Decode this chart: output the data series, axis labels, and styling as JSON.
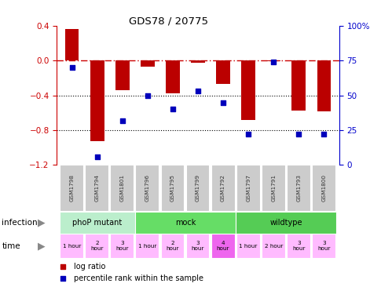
{
  "title": "GDS78 / 20775",
  "samples": [
    "GSM1798",
    "GSM1794",
    "GSM1801",
    "GSM1796",
    "GSM1795",
    "GSM1799",
    "GSM1792",
    "GSM1797",
    "GSM1791",
    "GSM1793",
    "GSM1800"
  ],
  "log_ratio": [
    0.36,
    -0.93,
    -0.34,
    -0.07,
    -0.38,
    -0.02,
    -0.27,
    -0.68,
    -0.01,
    -0.57,
    -0.58
  ],
  "percentile": [
    70,
    6,
    32,
    50,
    40,
    53,
    45,
    22,
    74,
    22,
    22
  ],
  "ylim_left": [
    -1.2,
    0.4
  ],
  "ylim_right": [
    0,
    100
  ],
  "yticks_left": [
    -1.2,
    -0.8,
    -0.4,
    0.0,
    0.4
  ],
  "yticks_right": [
    0,
    25,
    50,
    75,
    100
  ],
  "dotted_lines": [
    -0.4,
    -0.8
  ],
  "bar_color": "#bb0000",
  "dot_color": "#0000bb",
  "infection_groups": [
    {
      "label": "phoP mutant",
      "start": 0,
      "end": 3,
      "color": "#bbeecc"
    },
    {
      "label": "mock",
      "start": 3,
      "end": 7,
      "color": "#66dd66"
    },
    {
      "label": "wildtype",
      "start": 7,
      "end": 11,
      "color": "#55cc55"
    }
  ],
  "time_data": [
    {
      "idx": 0,
      "label": "1 hour",
      "color": "#ffbbff"
    },
    {
      "idx": 1,
      "label": "2\nhour",
      "color": "#ffbbff"
    },
    {
      "idx": 2,
      "label": "3\nhour",
      "color": "#ffbbff"
    },
    {
      "idx": 3,
      "label": "1 hour",
      "color": "#ffbbff"
    },
    {
      "idx": 4,
      "label": "2\nhour",
      "color": "#ffbbff"
    },
    {
      "idx": 5,
      "label": "3\nhour",
      "color": "#ffbbff"
    },
    {
      "idx": 6,
      "label": "4\nhour",
      "color": "#ee66ee"
    },
    {
      "idx": 7,
      "label": "1 hour",
      "color": "#ffbbff"
    },
    {
      "idx": 8,
      "label": "2 hour",
      "color": "#ffbbff"
    },
    {
      "idx": 9,
      "label": "3\nhour",
      "color": "#ffbbff"
    },
    {
      "idx": 10,
      "label": "3\nhour",
      "color": "#ffbbff"
    }
  ],
  "sample_box_color": "#cccccc",
  "axis_color_left": "#cc0000",
  "axis_color_right": "#0000cc",
  "legend_items": [
    {
      "color": "#bb0000",
      "label": "log ratio"
    },
    {
      "color": "#0000bb",
      "label": "percentile rank within the sample"
    }
  ]
}
